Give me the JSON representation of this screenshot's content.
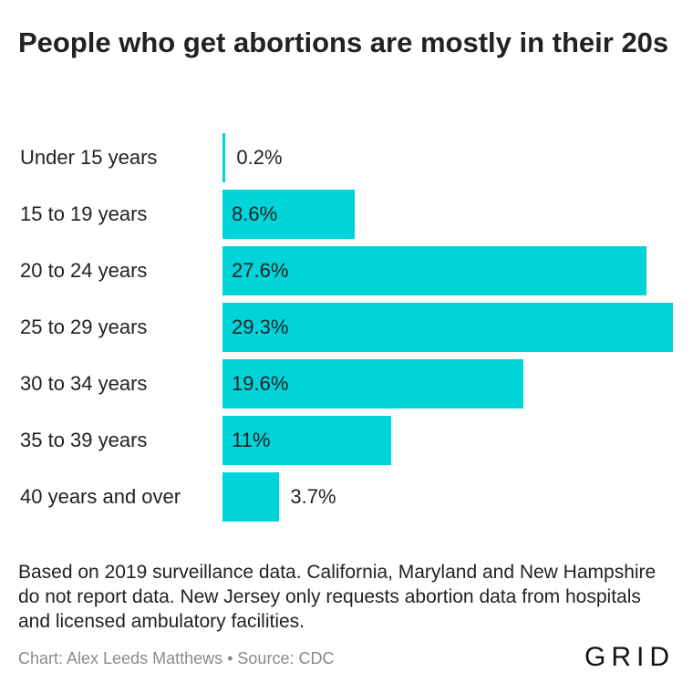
{
  "title": "People who get abortions are mostly in their 20s",
  "note": "Based on 2019 surveillance data. California, Maryland and New Hampshire do not report data. New Jersey only requests abortion data from hospitals and licensed ambulatory facilities.",
  "credit": "Chart: Alex Leeds Matthews • Source: CDC",
  "logo": "GRID",
  "colors": {
    "bar": "#00d4d9",
    "text": "#222222",
    "muted": "#8a8a8a"
  },
  "chart_data": {
    "type": "bar",
    "orientation": "horizontal",
    "categories": [
      "Under 15 years",
      "15 to 19 years",
      "20 to 24 years",
      "25 to 29 years",
      "30 to 34 years",
      "35 to 39 years",
      "40 years and over"
    ],
    "values": [
      0.2,
      8.6,
      27.6,
      29.3,
      19.6,
      11,
      3.7
    ],
    "value_labels": [
      "0.2%",
      "8.6%",
      "27.6%",
      "29.3%",
      "19.6%",
      "11%",
      "3.7%"
    ],
    "unit": "%",
    "grid": false,
    "legend": "none"
  }
}
